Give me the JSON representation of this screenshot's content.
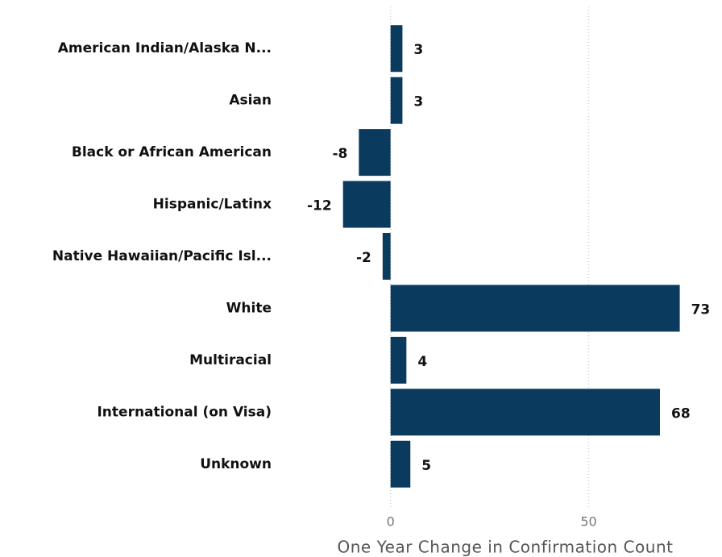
{
  "chart_data": {
    "type": "barh",
    "categories": [
      "American Indian/Alaska N...",
      "Asian",
      "Black or African American",
      "Hispanic/Latinx",
      "Native Hawaiian/Pacific Isl...",
      "White",
      "Multiracial",
      "International (on Visa)",
      "Unknown"
    ],
    "values": [
      3,
      3,
      -8,
      -12,
      -2,
      73,
      4,
      68,
      5
    ],
    "color": "#0b3a5f",
    "xlabel": "One Year Change in Confirmation Count",
    "xlim": [
      -28,
      80
    ],
    "xticks": [
      0,
      50
    ],
    "grid": true
  }
}
